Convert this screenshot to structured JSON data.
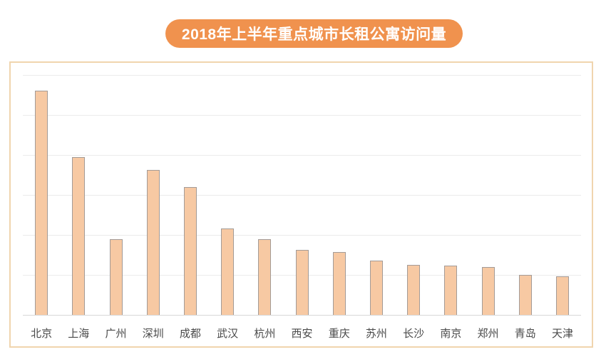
{
  "title_badge": {
    "text": "2018年上半年重点城市长租公寓访问量",
    "bg_color": "#F0924E",
    "text_color": "#FFFFFF"
  },
  "panel": {
    "border_color": "#F0D5AE",
    "background": "#FFFFFF"
  },
  "chart_data": {
    "type": "bar",
    "title": "2018年上半年重点城市长租公寓访问量",
    "categories": [
      "北京",
      "上海",
      "广州",
      "深圳",
      "成都",
      "武汉",
      "杭州",
      "西安",
      "重庆",
      "苏州",
      "长沙",
      "南京",
      "郑州",
      "青岛",
      "天津"
    ],
    "values": [
      5.61,
      3.95,
      1.89,
      3.63,
      3.2,
      2.16,
      1.89,
      1.63,
      1.57,
      1.36,
      1.25,
      1.23,
      1.2,
      1.0,
      0.96
    ],
    "value_note": "relative units estimated from unlabeled gridlines (1 unit = 1 gridline interval); chart shows no numeric y-axis labels",
    "xlabel": "",
    "ylabel": "",
    "ylim": [
      0,
      6
    ],
    "gridline_count": 7,
    "grid": "horizontal",
    "legend": "none",
    "bar_color": "#F7C9A3",
    "bar_border_color": "#A39B97",
    "gridline_color": "#EBEBEB",
    "axis_line_color": "#D8D8D8",
    "label_color": "#4A4A4A"
  }
}
